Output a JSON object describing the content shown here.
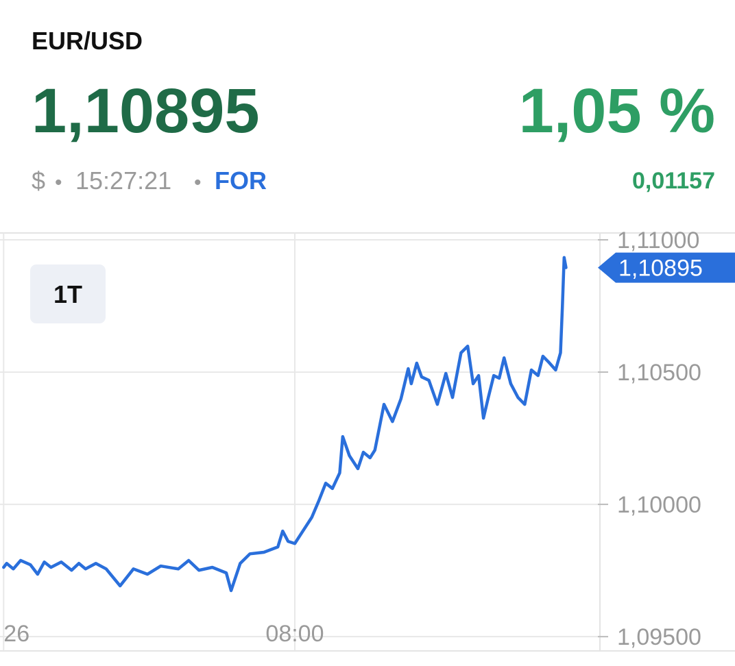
{
  "header": {
    "pair": "EUR/USD",
    "price": "1,10895",
    "change_pct": "1,05 %",
    "currency": "$",
    "separator": "•",
    "time": "15:27:21",
    "exchange": "FOR",
    "change_abs": "0,01157"
  },
  "chart_data": {
    "type": "line",
    "color": "#2a6fdb",
    "range_button": "1T",
    "x": [
      0,
      5,
      16,
      28,
      44,
      56,
      67,
      78,
      95,
      112,
      124,
      135,
      152,
      169,
      192,
      214,
      237,
      259,
      288,
      305,
      322,
      344,
      367,
      375,
      390,
      406,
      429,
      452,
      460,
      469,
      480,
      491,
      508,
      520,
      531,
      542,
      554,
      559,
      570,
      584,
      593,
      604,
      612,
      627,
      641,
      655,
      667,
      672,
      681,
      689,
      701,
      715,
      729,
      740,
      754,
      765,
      774,
      783,
      791,
      799,
      808,
      817,
      825,
      836,
      848,
      859,
      870,
      881,
      889,
      898,
      910,
      918,
      921,
      924,
      927
    ],
    "values": [
      1.09762,
      1.09777,
      1.09756,
      1.09788,
      1.09772,
      1.09736,
      1.09782,
      1.09762,
      1.09782,
      1.09751,
      1.09777,
      1.09756,
      1.09777,
      1.09756,
      1.09692,
      1.09756,
      1.09736,
      1.09767,
      1.09756,
      1.09788,
      1.09751,
      1.09762,
      1.09741,
      1.09674,
      1.09777,
      1.09813,
      1.09819,
      1.09839,
      1.09899,
      1.0986,
      1.09852,
      1.09891,
      1.09951,
      1.10016,
      1.1008,
      1.1006,
      1.10119,
      1.10256,
      1.10184,
      1.10135,
      1.10197,
      1.10176,
      1.10205,
      1.10378,
      1.10313,
      1.10399,
      1.10513,
      1.10456,
      1.10534,
      1.10482,
      1.10469,
      1.10378,
      1.10495,
      1.10404,
      1.10573,
      1.10598,
      1.10456,
      1.10487,
      1.10326,
      1.10404,
      1.10487,
      1.10477,
      1.10554,
      1.10456,
      1.10404,
      1.10378,
      1.10508,
      1.10487,
      1.1056,
      1.10539,
      1.10508,
      1.10573,
      1.10741,
      1.10933,
      1.10895
    ],
    "xlim": [
      -6,
      983
    ],
    "xticks": [
      {
        "value": 0,
        "label": "26"
      },
      {
        "value": 480,
        "label": "08:00"
      }
    ],
    "ylim": [
      1.09446,
      1.11026
    ],
    "yticks": [
      {
        "value": 1.095,
        "label": "1,09500"
      },
      {
        "value": 1.1,
        "label": "1,10000"
      },
      {
        "value": 1.105,
        "label": "1,10500"
      },
      {
        "value": 1.11,
        "label": "1,11000"
      }
    ],
    "price_tag": {
      "value": 1.10895,
      "label": "1,10895"
    },
    "grid": true
  }
}
